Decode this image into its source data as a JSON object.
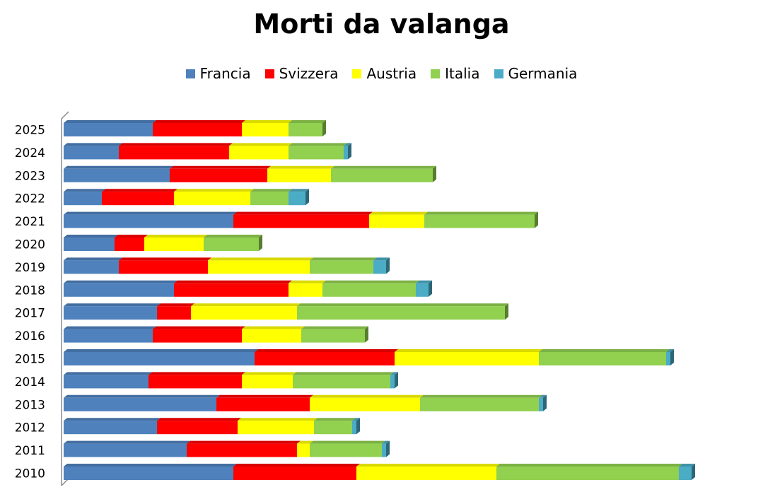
{
  "chart_data": {
    "type": "bar",
    "orientation": "horizontal",
    "stacked": true,
    "title": "Morti da valanga",
    "legend_position": "top",
    "grid": false,
    "categories": [
      "2010",
      "2011",
      "2012",
      "2013",
      "2014",
      "2015",
      "2016",
      "2017",
      "2018",
      "2019",
      "2020",
      "2021",
      "2022",
      "2023",
      "2024",
      "2025"
    ],
    "series": [
      {
        "name": "Francia",
        "color": "#4F81BD",
        "values": [
          40,
          29,
          22,
          36,
          20,
          45,
          21,
          22,
          26,
          13,
          12,
          40,
          9,
          25,
          13,
          21
        ]
      },
      {
        "name": "Svizzera",
        "color": "#FF0000",
        "values": [
          29,
          26,
          19,
          22,
          22,
          33,
          21,
          8,
          27,
          21,
          7,
          32,
          17,
          23,
          26,
          21
        ]
      },
      {
        "name": "Austria",
        "color": "#FFFF00",
        "values": [
          33,
          3,
          18,
          26,
          12,
          34,
          14,
          25,
          8,
          24,
          14,
          13,
          18,
          15,
          14,
          11
        ]
      },
      {
        "name": "Italia",
        "color": "#92D050",
        "values": [
          43,
          17,
          9,
          28,
          23,
          30,
          15,
          49,
          22,
          15,
          13,
          26,
          9,
          24,
          13,
          8
        ]
      },
      {
        "name": "Germania",
        "color": "#4BACC6",
        "values": [
          3,
          1,
          1,
          1,
          1,
          1,
          0,
          0,
          3,
          3,
          0,
          0,
          4,
          0,
          1,
          0
        ]
      }
    ]
  }
}
